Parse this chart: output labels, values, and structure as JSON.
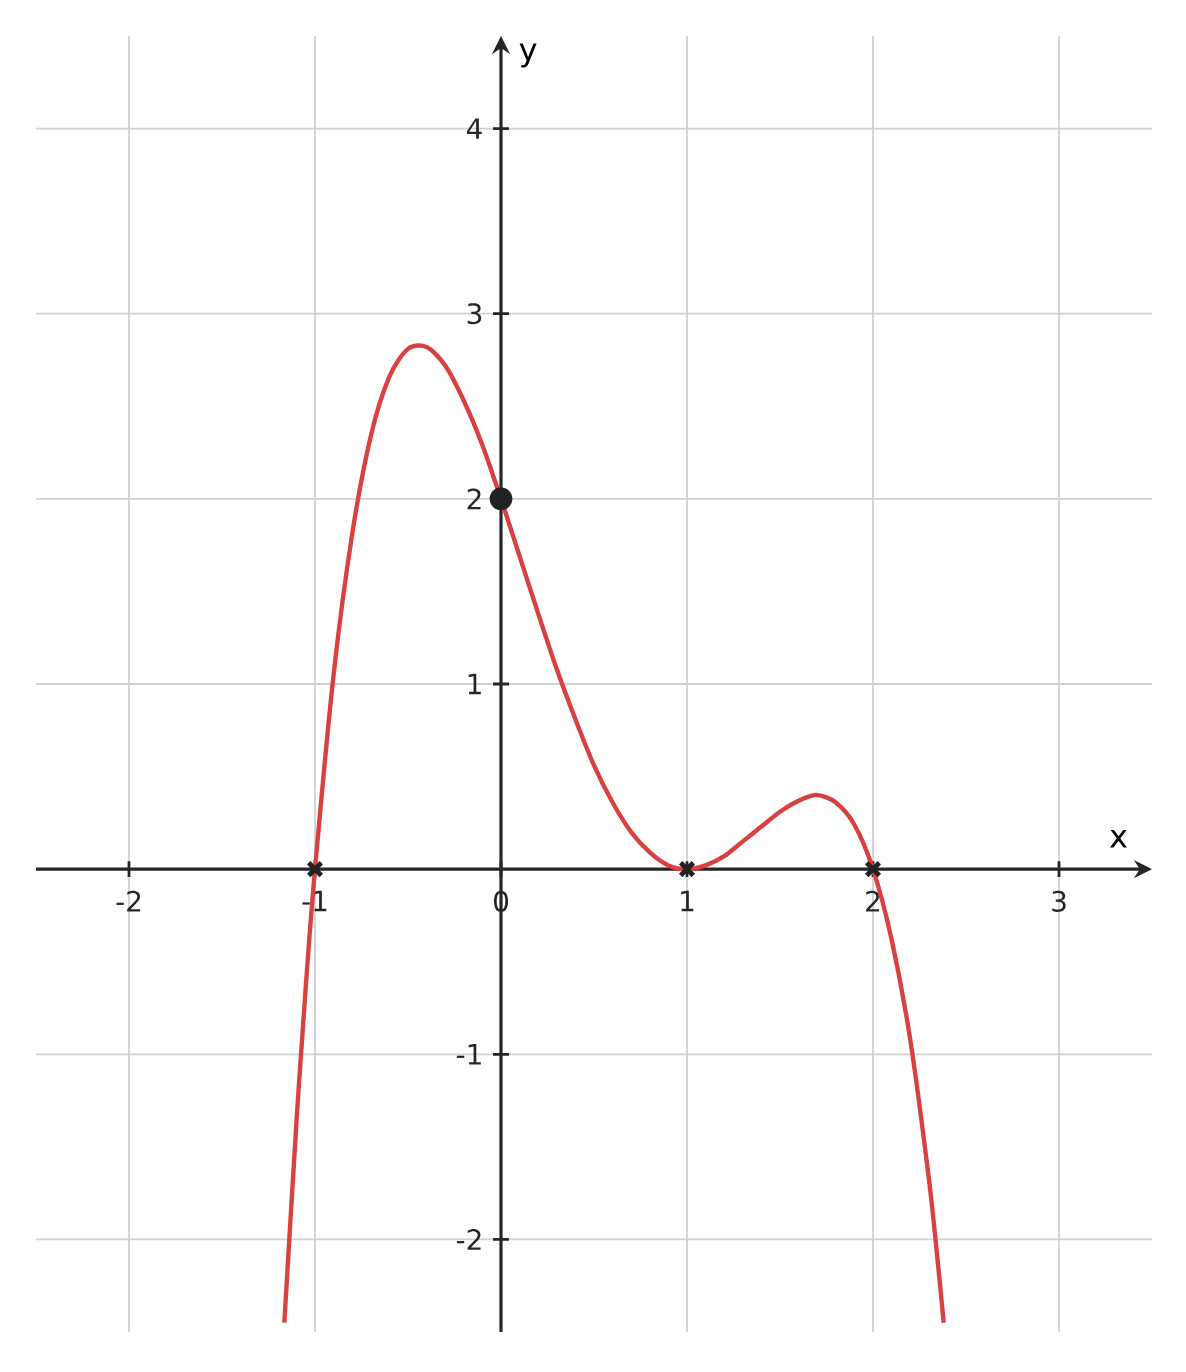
{
  "chart_data": {
    "type": "line",
    "xlabel": "x",
    "ylabel": "y",
    "xlim": [
      -2.5,
      3.5
    ],
    "ylim": [
      -2.5,
      4.5
    ],
    "xticks": [
      -2,
      -1,
      0,
      1,
      2,
      3
    ],
    "yticks": [
      -2,
      -1,
      1,
      2,
      3,
      4
    ],
    "grid": true,
    "series": [
      {
        "color": "#d94040",
        "x": [
          -1.165,
          -1.1,
          -1.05,
          -1.0,
          -0.9,
          -0.8,
          -0.7,
          -0.6,
          -0.5,
          -0.4,
          -0.3,
          -0.2,
          -0.1,
          0,
          0.1,
          0.2,
          0.3,
          0.4,
          0.5,
          0.6,
          0.7,
          0.8,
          0.9,
          1.0,
          1.1,
          1.2,
          1.3,
          1.4,
          1.5,
          1.6,
          1.7,
          1.8,
          1.9,
          2.0,
          2.1,
          2.2,
          2.3,
          2.35,
          2.38
        ],
        "values": [
          -2.45,
          -1.37,
          -0.64,
          0,
          1.05,
          1.81,
          2.34,
          2.66,
          2.81,
          2.82,
          2.72,
          2.53,
          2.29,
          2,
          1.69,
          1.38,
          1.08,
          0.81,
          0.56,
          0.36,
          0.2,
          0.09,
          0.02,
          0,
          0.02,
          0.07,
          0.15,
          0.23,
          0.31,
          0.37,
          0.4,
          0.36,
          0.24,
          0,
          -0.38,
          -0.92,
          -1.67,
          -2.14,
          -2.45
        ]
      },
      {
        "type": "scatter",
        "marker": "cross",
        "color": "#222222",
        "x": [
          -1,
          1,
          2
        ],
        "values": [
          0,
          0,
          0
        ]
      },
      {
        "type": "scatter",
        "marker": "circle",
        "color": "#222222",
        "x": [
          0
        ],
        "values": [
          2
        ]
      }
    ]
  }
}
